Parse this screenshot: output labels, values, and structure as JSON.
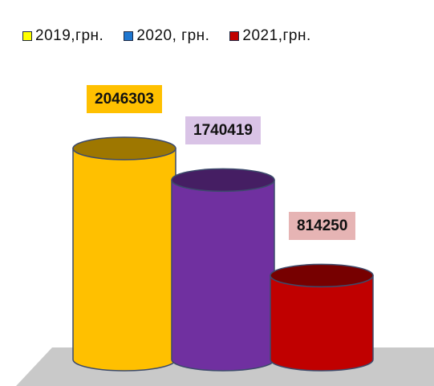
{
  "chart_data": {
    "type": "bar",
    "title": "",
    "xlabel": "",
    "ylabel": "",
    "categories": [
      "2019,грн.",
      "2020, грн.",
      "2021,грн."
    ],
    "values": [
      2046303,
      1740419,
      814250
    ],
    "value_labels": [
      "2046303",
      "1740419",
      "814250"
    ],
    "legend_position": "top",
    "grid": false,
    "series_colors": [
      "#ffc000",
      "#7030a0",
      "#c00000"
    ],
    "label_bg_colors": [
      "#ffc000",
      "#d9c3e6",
      "#e6b4b4"
    ],
    "legend_swatch_colors": [
      "#ffff00",
      "#1f77d0",
      "#c00000"
    ]
  }
}
